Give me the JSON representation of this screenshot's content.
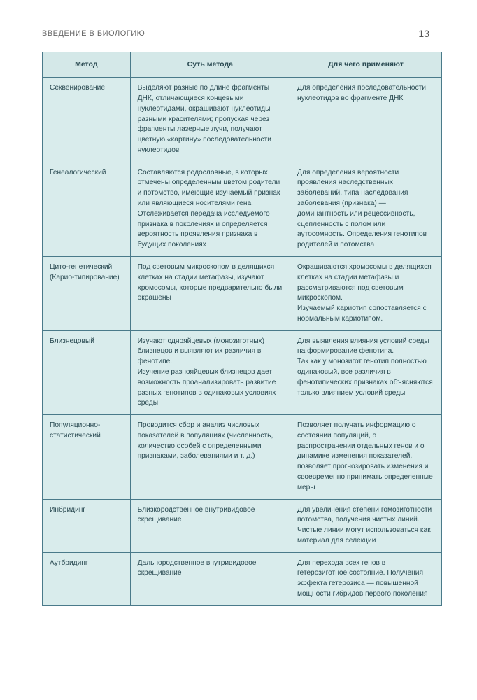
{
  "header": {
    "chapter": "ВВЕДЕНИЕ В БИОЛОГИЮ",
    "page_number": "13"
  },
  "table": {
    "columns": [
      "Метод",
      "Суть метода",
      "Для чего применяют"
    ],
    "rows": [
      {
        "method": "Секвенирование",
        "essence": "Выделяют разные по длине фрагменты ДНК, отличающиеся концевыми нуклеотидами, окрашивают нуклеотиды разными красителями; пропуская через фрагменты лазерные лучи, получают цветную «картину» последовательности нуклеотидов",
        "purpose": "Для определения последовательности нуклеотидов во фрагменте ДНК"
      },
      {
        "method": "Генеалогический",
        "essence": "Составляются родословные, в которых отмечены определенным цветом родители и потомство, имеющие изучаемый признак или являющиеся носителями гена. Отслеживается передача исследуемого признака в поколениях и определяется вероятность проявления признака в будущих поколениях",
        "purpose": "Для определения вероятности проявления наследственных заболеваний, типа наследования заболевания (признака) — доминантность или рецессивность, сцепленность с полом или аутосомность. Определения генотипов родителей и потомства"
      },
      {
        "method": "Цито-генетический (Карио-типирование)",
        "essence": "Под световым микроскопом в делящихся клетках на стадии метафазы, изучают хромосомы, которые предварительно были окрашены",
        "purpose": "Окрашиваются хромосомы в делящихся клетках на стадии метафазы и рассматриваются под световым микроскопом.\nИзучаемый кариотип сопоставляется с нормальным кариотипом."
      },
      {
        "method": "Близнецовый",
        "essence": "Изучают однояйцевых (монозиготных) близнецов и выявляют их различия в фенотипе.\nИзучение разнояйцевых близнецов дает возможность проанализировать развитие разных генотипов в одинаковых условиях среды",
        "purpose": "Для выявления влияния условий среды на формирование фенотипа.\nТак как у монозигот генотип полностью одинаковый, все различия в фенотипических признаках объясняются только влиянием условий среды"
      },
      {
        "method": "Популяционно-статистический",
        "essence": "Проводится сбор и анализ числовых показателей в популяциях (численность, количество особей с определенными признаками, заболеваниями и т. д.)",
        "purpose": "Позволяет получать информацию о состоянии популяций, о распространении отдельных генов и о динамике изменения показателей, позволяет прогнозировать изменения и своевременно принимать определенные меры"
      },
      {
        "method": "Инбридинг",
        "essence": "Близкородственное внутривидовое скрещивание",
        "purpose": "Для увеличения степени гомозиготности потомства, получения чистых линий. Чистые линии могут использоваться как материал для селекции"
      },
      {
        "method": "Аутбридинг",
        "essence": "Дальнородственное внутривидовое скрещивание",
        "purpose": "Для перехода всех генов в гетерозиготное состояние. Получения эффекта гетерозиса — повышенной мощности гибридов первого поколения"
      }
    ]
  },
  "styling": {
    "page_bg": "#ffffff",
    "cell_bg": "#d9ecec",
    "header_bg": "#d4e8e8",
    "border_color": "#4a7a8a",
    "text_color": "#2a4a52",
    "chapter_color": "#666",
    "body_font_size": 10.2,
    "header_font_size": 10.5,
    "col_widths_pct": [
      22,
      40,
      38
    ]
  }
}
